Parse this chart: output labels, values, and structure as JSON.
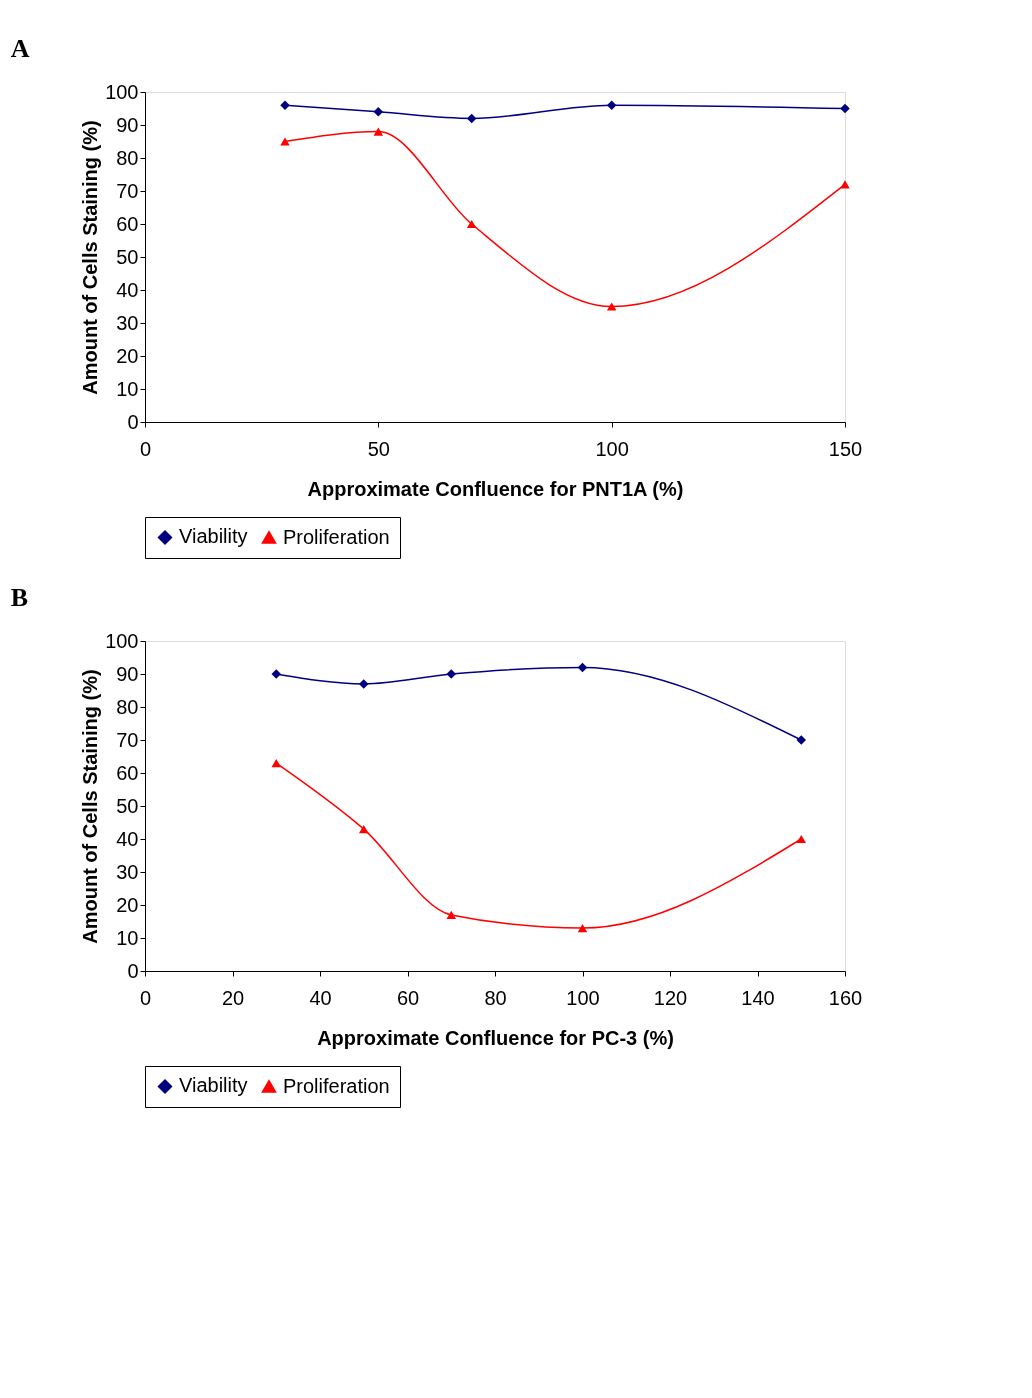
{
  "chart_data": [
    {
      "type": "line",
      "title": "A",
      "xlabel": "Approximate Confluence for PNT1A (%)",
      "ylabel": "Amount of Cells Staining (%)",
      "x": [
        30,
        50,
        70,
        100,
        150
      ],
      "xlim": [
        0,
        150
      ],
      "xticks": [
        0,
        50,
        100,
        150
      ],
      "ylim": [
        0,
        100
      ],
      "yticks": [
        0,
        10,
        20,
        30,
        40,
        50,
        60,
        70,
        80,
        90,
        100
      ],
      "grid": false,
      "legend": "bottom",
      "line_style": "solid",
      "series": [
        {
          "name": "Viability",
          "color": "#000080",
          "marker": "diamond",
          "values": [
            96,
            94,
            92,
            96,
            95
          ]
        },
        {
          "name": "Proliferation",
          "color": "#ff0000",
          "marker": "triangle",
          "values": [
            85,
            88,
            60,
            35,
            72
          ]
        }
      ]
    },
    {
      "type": "line",
      "title": "B",
      "xlabel": "Approximate Confluence for PC-3 (%)",
      "ylabel": "Amount of Cells Staining (%)",
      "x": [
        30,
        50,
        70,
        100,
        150
      ],
      "xlim": [
        0,
        160
      ],
      "xticks": [
        0,
        20,
        40,
        60,
        80,
        100,
        120,
        140,
        160
      ],
      "ylim": [
        0,
        100
      ],
      "yticks": [
        0,
        10,
        20,
        30,
        40,
        50,
        60,
        70,
        80,
        90,
        100
      ],
      "grid": false,
      "legend": "bottom",
      "line_style": "solid",
      "series": [
        {
          "name": "Viability",
          "color": "#000080",
          "marker": "diamond",
          "values": [
            90,
            87,
            90,
            92,
            70
          ]
        },
        {
          "name": "Proliferation",
          "color": "#ff0000",
          "marker": "triangle",
          "values": [
            63,
            43,
            17,
            13,
            40
          ]
        }
      ]
    }
  ]
}
